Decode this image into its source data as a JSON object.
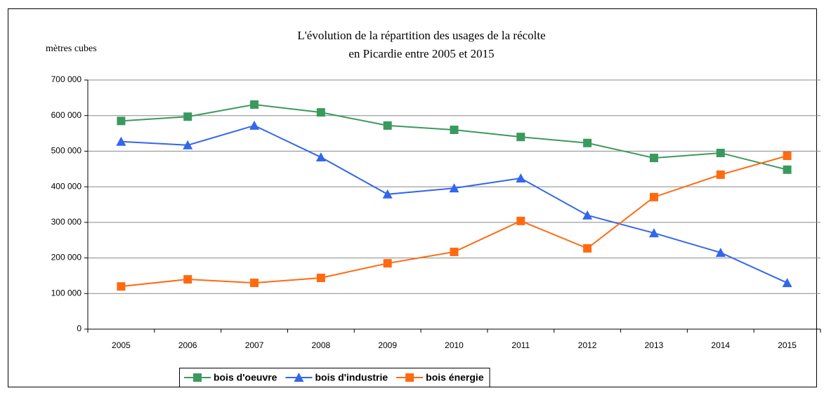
{
  "chart_data": {
    "type": "line",
    "title": [
      "L'évolution de la répartition des usages de la récolte",
      "en Picardie entre 2005 et 2015"
    ],
    "ylabel": "mètres cubes",
    "categories": [
      "2005",
      "2006",
      "2007",
      "2008",
      "2009",
      "2010",
      "2011",
      "2012",
      "2013",
      "2014",
      "2015"
    ],
    "series": [
      {
        "name": "bois d'oeuvre",
        "color": "#3a9a5e",
        "marker": "square",
        "values": [
          585000,
          597000,
          631000,
          609000,
          572000,
          560000,
          540000,
          523000,
          481000,
          495000,
          448000
        ]
      },
      {
        "name": "bois d'industrie",
        "color": "#3366ee",
        "marker": "triangle",
        "values": [
          527000,
          517000,
          572000,
          483000,
          379000,
          396000,
          424000,
          320000,
          270000,
          215000,
          130000
        ]
      },
      {
        "name": "bois énergie",
        "color": "#ff6a10",
        "marker": "square",
        "values": [
          120000,
          140000,
          130000,
          144000,
          185000,
          217000,
          304000,
          227000,
          371000,
          434000,
          487000
        ]
      }
    ],
    "ylim": [
      0,
      700000
    ],
    "yticks": [
      0,
      {
        "value": 100000,
        "label": "100 000"
      },
      {
        "value": 200000,
        "label": "200 000"
      },
      {
        "value": 300000,
        "label": "300 000"
      },
      {
        "value": 400000,
        "label": "400 000"
      },
      {
        "value": 500000,
        "label": "500 000"
      },
      {
        "value": 600000,
        "label": "600 000"
      },
      {
        "value": 700000,
        "label": "700 000"
      }
    ],
    "grid": true,
    "legend": "bottom"
  }
}
